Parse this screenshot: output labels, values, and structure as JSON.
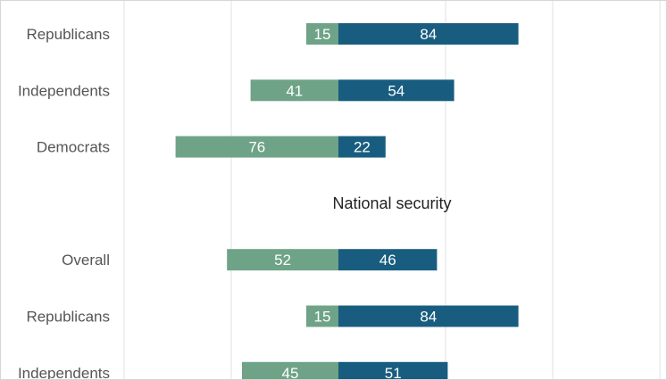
{
  "chart_data": {
    "type": "bar",
    "orientation": "horizontal-diverging",
    "groups": [
      {
        "title": "",
        "rows": [
          {
            "label": "Republicans",
            "left": 15,
            "right": 84
          },
          {
            "label": "Independents",
            "left": 41,
            "right": 54
          },
          {
            "label": "Democrats",
            "left": 76,
            "right": 22
          }
        ]
      },
      {
        "title": "National security",
        "rows": [
          {
            "label": "Overall",
            "left": 52,
            "right": 46
          },
          {
            "label": "Republicans",
            "left": 15,
            "right": 84
          },
          {
            "label": "Independents",
            "left": 45,
            "right": 51
          }
        ]
      }
    ],
    "grid": true,
    "colors": {
      "left": "#6ea387",
      "right": "#185d7f",
      "grid": "#e2e2e2",
      "label": "#555555",
      "title": "#222222",
      "value_text": "#ffffff"
    }
  }
}
